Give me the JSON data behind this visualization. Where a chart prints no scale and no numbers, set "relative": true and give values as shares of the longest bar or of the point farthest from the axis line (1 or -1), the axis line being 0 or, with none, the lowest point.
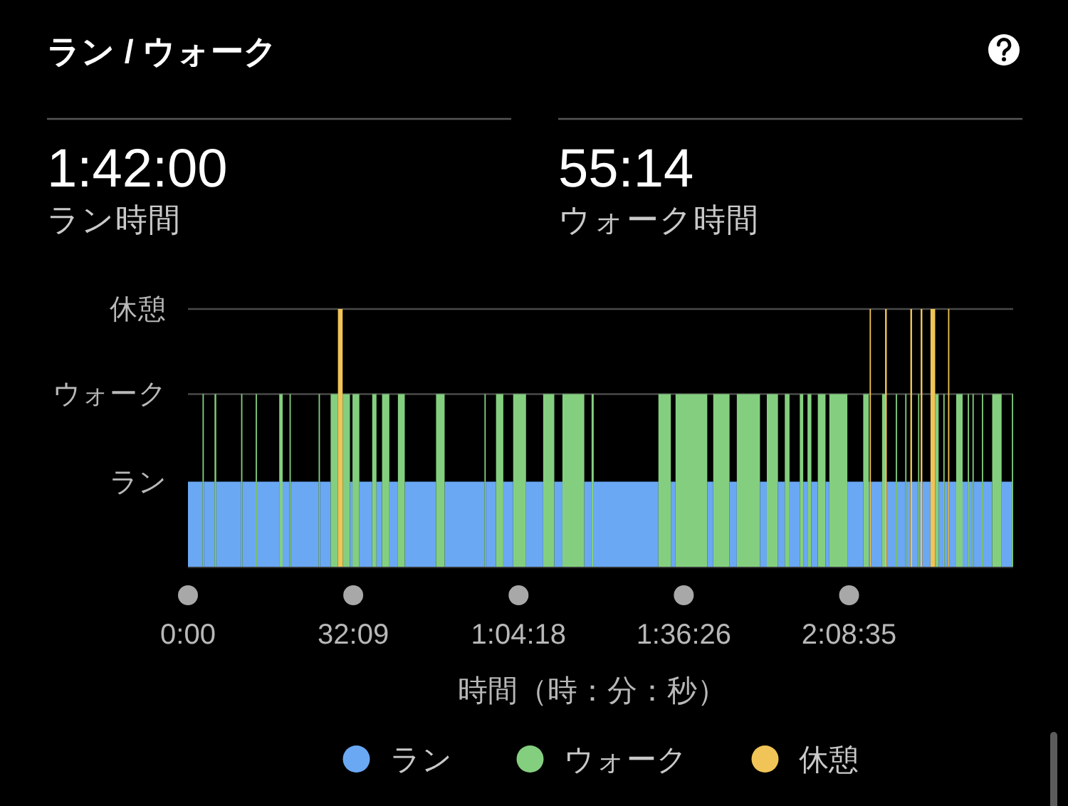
{
  "chart_data": {
    "type": "area",
    "title": "ラン / ウォーク",
    "annotations": [
      "1:42:00",
      "ラン時間",
      "55:14",
      "ウォーク時間"
    ],
    "xlabel": "時間（時：分：秒）",
    "relative": true,
    "series": [
      {
        "name": "ラン",
        "color": "#6aa8f4",
        "x": [
          0,
          0,
          170,
          170,
          185,
          185,
          310,
          310,
          330,
          330,
          620,
          620,
          635,
          635,
          790,
          790,
          805,
          805,
          1065,
          1065,
          1105,
          1105,
          1185,
          1185,
          1200,
          1200,
          1525,
          1525,
          1540,
          1540,
          1665,
          1665,
          1890,
          1890,
          1920,
          1920,
          2000,
          2000,
          2150,
          2150,
          2200,
          2200,
          2265,
          2265,
          2350,
          2350,
          2450,
          2450,
          2530,
          2530,
          2895,
          2895,
          2995,
          2995,
          3460,
          3460,
          3475,
          3475,
          3595,
          3595,
          3680,
          3680,
          3795,
          3795,
          3945,
          3945,
          4145,
          4145,
          4275,
          4275,
          4370,
          4370,
          4625,
          4625,
          4710,
          4710,
          4735,
          4735,
          5490,
          5490,
          5635,
          5635,
          5690,
          5690,
          6060,
          6060,
          6130,
          6130,
          6320,
          6320,
          6405,
          6405,
          6675,
          6675,
          6755,
          6755,
          6885,
          6885,
          6965,
          6965,
          7020,
          7020,
          7140,
          7140,
          7180,
          7180,
          7230,
          7230,
          7275,
          7275,
          7350,
          7350,
          7440,
          7440,
          7485,
          7485,
          7695,
          7695,
          7880,
          7880,
          7945,
          7945,
          7955,
          7955,
          7970,
          7970,
          8100,
          8100,
          8155,
          8155,
          8260,
          8260,
          8275,
          8275,
          8370,
          8370,
          8385,
          8385,
          8430,
          8430,
          8450,
          8450,
          8520,
          8520,
          8535,
          8535,
          8550,
          8550,
          8570,
          8570,
          8665,
          8665,
          8760,
          8760,
          8815,
          8815,
          8830,
          8830,
          8870,
          8870,
          8885,
          8885,
          8965,
          8965,
          9040,
          9040,
          9100,
          9100,
          9115,
          9115,
          9155,
          9155,
          9170,
          9170,
          9265,
          9265,
          9280,
          9280,
          9385,
          9385,
          9495,
          9495,
          9615,
          9615
        ],
        "values": [
          0,
          0.33,
          0.33,
          0,
          0,
          0.33,
          0.33,
          0,
          0,
          0.33,
          0.33,
          0,
          0,
          0.33,
          0.33,
          0,
          0,
          0.33,
          0.33,
          0,
          0,
          0.33,
          0.33,
          0,
          0,
          0.33,
          0.33,
          0,
          0,
          0.33,
          0.33,
          0,
          0,
          0.33,
          0.33,
          0,
          0,
          0.33,
          0.33,
          0,
          0,
          0.33,
          0.33,
          0,
          0,
          0.33,
          0.33,
          0,
          0,
          0.33,
          0.33,
          0,
          0,
          0.33,
          0.33,
          0,
          0,
          0.33,
          0.33,
          0,
          0,
          0.33,
          0.33,
          0,
          0,
          0.33,
          0.33,
          0,
          0,
          0.33,
          0.33,
          0,
          0,
          0.33,
          0.33,
          0,
          0,
          0.33,
          0.33,
          0,
          0,
          0.33,
          0.33,
          0,
          0,
          0.33,
          0.33,
          0,
          0,
          0.33,
          0.33,
          0,
          0,
          0.33,
          0.33,
          0,
          0,
          0.33,
          0.33,
          0,
          0,
          0.33,
          0.33,
          0,
          0,
          0.33,
          0.33,
          0,
          0,
          0.33,
          0.33,
          0,
          0,
          0.33,
          0.33,
          0,
          0,
          0.33,
          0.33,
          0,
          0,
          0.33,
          0.33,
          0,
          0,
          0.33,
          0.33,
          0,
          0,
          0.33,
          0.33,
          0,
          0,
          0.33,
          0.33,
          0,
          0,
          0.33,
          0.33,
          0,
          0,
          0.33,
          0.33,
          0,
          0,
          0.33,
          0.33,
          0,
          0,
          0.33,
          0.33,
          0,
          0,
          0.33,
          0.33,
          0,
          0,
          0.33,
          0.33,
          0,
          0,
          0.33,
          0.33,
          0,
          0,
          0.33,
          0.33,
          0,
          0,
          0.33,
          0.33,
          0,
          0,
          0.33,
          0.33,
          0,
          0,
          0.33,
          0.33,
          0,
          0,
          0.33,
          0.33,
          0
        ]
      },
      {
        "name": "ウォーク",
        "color": "#84cf7f",
        "x": [
          170,
          170,
          185,
          185,
          310,
          310,
          330,
          330,
          620,
          620,
          635,
          635,
          790,
          790,
          805,
          805,
          1065,
          1065,
          1105,
          1105,
          1185,
          1185,
          1200,
          1200,
          1525,
          1525,
          1540,
          1540,
          1665,
          1665,
          1750,
          1750,
          1805,
          1805,
          1890,
          1890,
          1920,
          1920,
          2000,
          2000,
          2150,
          2150,
          2200,
          2200,
          2265,
          2265,
          2350,
          2350,
          2450,
          2450,
          2530,
          2530,
          2895,
          2895,
          2995,
          2995,
          3460,
          3460,
          3475,
          3475,
          3595,
          3595,
          3680,
          3680,
          3795,
          3795,
          3945,
          3945,
          4145,
          4145,
          4275,
          4275,
          4370,
          4370,
          4625,
          4625,
          4710,
          4710,
          4735,
          4735,
          5490,
          5490,
          5635,
          5635,
          5690,
          5690,
          6060,
          6060,
          6130,
          6130,
          6320,
          6320,
          6405,
          6405,
          6675,
          6675,
          6755,
          6755,
          6885,
          6885,
          6965,
          6965,
          7020,
          7020,
          7140,
          7140,
          7180,
          7180,
          7230,
          7230,
          7275,
          7275,
          7350,
          7350,
          7440,
          7440,
          7485,
          7485,
          7695,
          7695,
          7880,
          7880,
          7945,
          7945,
          8100,
          8100,
          8135,
          8135,
          8260,
          8260,
          8275,
          8275,
          8370,
          8370,
          8385,
          8385,
          8520,
          8520,
          8535,
          8535,
          8720,
          8720,
          8760,
          8760,
          8815,
          8815,
          8830,
          8830,
          8965,
          8965,
          9040,
          9040,
          9100,
          9100,
          9115,
          9115,
          9155,
          9155,
          9170,
          9170,
          9265,
          9265,
          9280,
          9280,
          9385,
          9385,
          9495,
          9495,
          9615,
          9615,
          9630,
          9630
        ],
        "values": [
          0,
          0.67,
          0.67,
          0,
          0,
          0.67,
          0.67,
          0,
          0,
          0.67,
          0.67,
          0,
          0,
          0.67,
          0.67,
          0,
          0,
          0.67,
          0.67,
          0,
          0,
          0.67,
          0.67,
          0,
          0,
          0.67,
          0.67,
          0,
          0,
          0.67,
          0.67,
          0,
          0,
          0.67,
          0.67,
          0,
          0,
          0.67,
          0.67,
          0,
          0,
          0.67,
          0.67,
          0,
          0,
          0.67,
          0.67,
          0,
          0,
          0.67,
          0.67,
          0,
          0,
          0.67,
          0.67,
          0,
          0,
          0.67,
          0.67,
          0,
          0,
          0.67,
          0.67,
          0,
          0,
          0.67,
          0.67,
          0,
          0,
          0.67,
          0.67,
          0,
          0,
          0.67,
          0.67,
          0,
          0,
          0.67,
          0.67,
          0,
          0,
          0.67,
          0.67,
          0,
          0,
          0.67,
          0.67,
          0,
          0,
          0.67,
          0.67,
          0,
          0,
          0.67,
          0.67,
          0,
          0,
          0.67,
          0.67,
          0,
          0,
          0.67,
          0.67,
          0,
          0,
          0.67,
          0.67,
          0,
          0,
          0.67,
          0.67,
          0,
          0,
          0.67,
          0.67,
          0,
          0,
          0.67,
          0.67,
          0,
          0,
          0.67,
          0.67,
          0,
          0,
          0.67,
          0.67,
          0,
          0,
          0.67,
          0.67,
          0,
          0,
          0.67,
          0.67,
          0,
          0,
          0.67,
          0.67,
          0,
          0,
          0.67,
          0.67,
          0,
          0,
          0.67,
          0.67,
          0,
          0,
          0.67,
          0.67,
          0,
          0,
          0.67,
          0.67,
          0,
          0,
          0.67,
          0.67,
          0,
          0,
          0.67,
          0.67,
          0,
          0,
          0.67,
          0.67,
          0,
          0,
          0.67,
          0.67,
          0
        ]
      },
      {
        "name": "休憩",
        "color": "#f0c456",
        "x": [
          1750,
          1750,
          1805,
          1805,
          7955,
          7955,
          7970,
          7970,
          8135,
          8135,
          8155,
          8155,
          8430,
          8430,
          8450,
          8450,
          8550,
          8550,
          8570,
          8570,
          8665,
          8665,
          8720,
          8720,
          8870,
          8870,
          8885,
          8885
        ],
        "values": [
          0,
          1,
          1,
          0,
          0,
          1,
          1,
          0,
          0,
          1,
          1,
          0,
          0,
          1,
          1,
          0,
          0,
          1,
          1,
          0,
          0,
          1,
          1,
          0,
          0,
          1,
          1,
          0
        ]
      }
    ],
    "xlim": [
      0,
      9630
    ],
    "xticks": [
      {
        "value": 0,
        "label": "0:00"
      },
      {
        "value": 1929,
        "label": "32:09"
      },
      {
        "value": 3858,
        "label": "1:04:18"
      },
      {
        "value": 5786,
        "label": "1:36:26"
      },
      {
        "value": 7715,
        "label": "2:08:35"
      }
    ],
    "ref_lines": [
      {
        "axis": "y",
        "value": 0.67,
        "color": "#4a4a4a"
      },
      {
        "axis": "y",
        "value": 1,
        "color": "#4a4a4a"
      }
    ],
    "legend": "bottom"
  }
}
